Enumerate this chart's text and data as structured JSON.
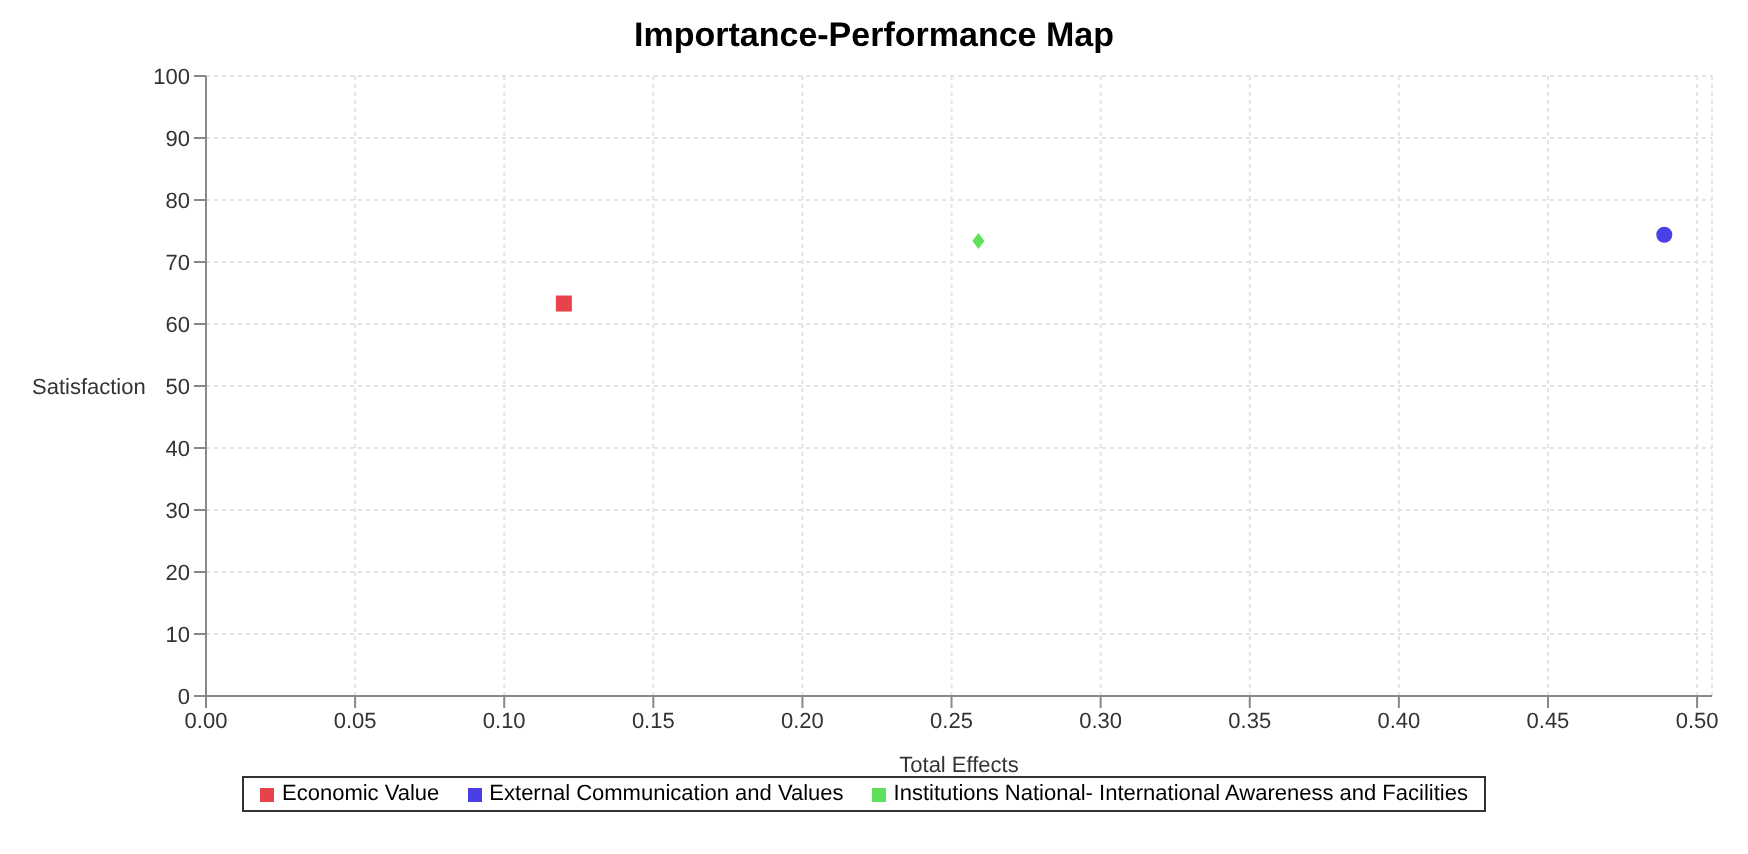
{
  "chart_data": {
    "type": "scatter",
    "title": "Importance-Performance Map",
    "xlabel": "Total Effects",
    "ylabel": "Satisfaction",
    "series": [
      {
        "name": "Economic Value",
        "color": "#e8424a",
        "x": [
          0.12
        ],
        "values": [
          63.3
        ],
        "marker": "square"
      },
      {
        "name": "External Communication and Values",
        "color": "#4a3ee6",
        "x": [
          0.489
        ],
        "values": [
          74.4
        ],
        "marker": "circle"
      },
      {
        "name": "Institutions National- International Awareness and Facilities",
        "color": "#5fe05a",
        "x": [
          0.259
        ],
        "values": [
          73.4
        ],
        "marker": "diamond"
      }
    ],
    "xlim": [
      0,
      0.505
    ],
    "xticks": [
      {
        "value": 0,
        "label": "0.00"
      },
      {
        "value": 0.05,
        "label": "0.05"
      },
      {
        "value": 0.1,
        "label": "0.10"
      },
      {
        "value": 0.15,
        "label": "0.15"
      },
      {
        "value": 0.2,
        "label": "0.20"
      },
      {
        "value": 0.25,
        "label": "0.25"
      },
      {
        "value": 0.3,
        "label": "0.30"
      },
      {
        "value": 0.35,
        "label": "0.35"
      },
      {
        "value": 0.4,
        "label": "0.40"
      },
      {
        "value": 0.45,
        "label": "0.45"
      },
      {
        "value": 0.5,
        "label": "0.50"
      }
    ],
    "ylim": [
      0,
      100
    ],
    "yticks": [
      0,
      10,
      20,
      30,
      40,
      50,
      60,
      70,
      80,
      90,
      100
    ],
    "grid": true,
    "legend": "bottom"
  }
}
